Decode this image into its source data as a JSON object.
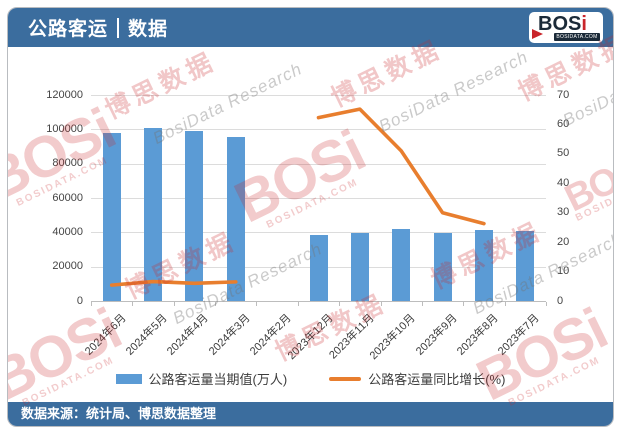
{
  "header": {
    "title_left": "公路客运",
    "title_right": "数据",
    "logo": {
      "text_main": "BOS",
      "text_accent": "i",
      "site": "BOSIDATA.COM"
    }
  },
  "footer": {
    "text": "数据来源：统计局、博思数据整理"
  },
  "colors": {
    "banner_blue": "#3B6D9E",
    "bar_blue": "#5B9BD5",
    "line_orange": "#E87E2E",
    "logo_red": "#C9252B",
    "logo_dark": "#1B2A38"
  },
  "watermark": {
    "cn_text": "博思数据",
    "en_text": "BosiData Research",
    "logo_text": "BOSi",
    "site_text": "BOSIDATA.COM"
  },
  "chart_data": {
    "type": "bar",
    "title": "公路客运 | 数据",
    "categories": [
      "2024年6月",
      "2024年5月",
      "2024年4月",
      "2024年3月",
      "2024年2月",
      "2023年12月",
      "2023年11月",
      "2023年10月",
      "2023年9月",
      "2023年8月",
      "2023年7月"
    ],
    "series": [
      {
        "name": "公路客运量当期值(万人)",
        "type": "bar",
        "axis": "left",
        "color": "#5B9BD5",
        "values": [
          98000,
          100600,
          98800,
          95700,
          null,
          38400,
          39800,
          42000,
          39800,
          41600,
          41000
        ]
      },
      {
        "name": "公路客运量同比增长(%)",
        "type": "line",
        "axis": "right",
        "color": "#E87E2E",
        "values": [
          5.4,
          6.6,
          6.0,
          6.5,
          null,
          62.3,
          65.2,
          51,
          30,
          26.3,
          null
        ]
      }
    ],
    "left_axis": {
      "min": 0,
      "max": 120000,
      "step": 20000,
      "ticks": [
        0,
        20000,
        40000,
        60000,
        80000,
        100000,
        120000
      ]
    },
    "right_axis": {
      "min": 0,
      "max": 70,
      "step": 10,
      "ticks": [
        0,
        10,
        20,
        30,
        40,
        50,
        60,
        70
      ]
    },
    "grid": true,
    "legend_position": "bottom",
    "xlabel": "",
    "ylabel": ""
  }
}
